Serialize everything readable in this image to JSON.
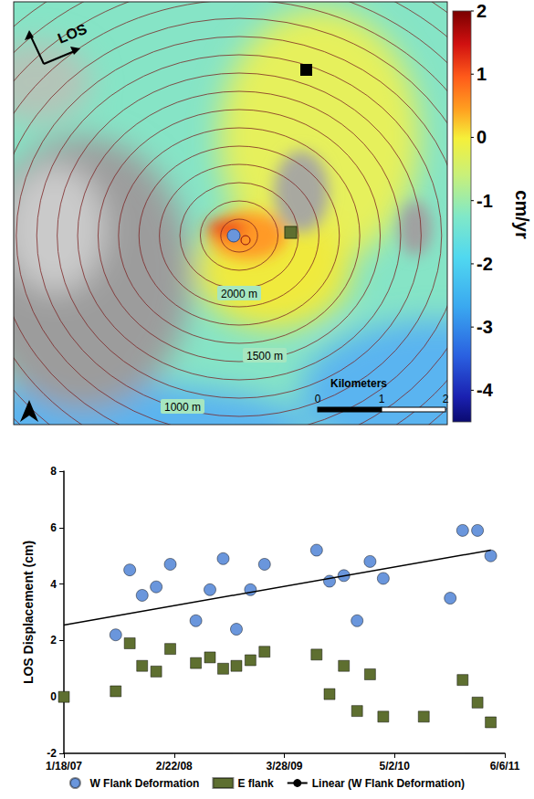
{
  "map": {
    "direction_label": "LOS",
    "colorbar": {
      "label": "cm/yr",
      "range": [
        -4.5,
        2
      ],
      "ticks": [
        2,
        1,
        0,
        -1,
        -2,
        -3,
        -4
      ]
    },
    "contour_labels": [
      "2000 m",
      "1500 m",
      "1000 m"
    ],
    "scale_bar": {
      "title": "Kilometers",
      "ticks": [
        0,
        1,
        2
      ]
    }
  },
  "chart_data": {
    "type": "scatter",
    "ylabel": "LOS Displacement (cm)",
    "xlim": [
      "2007-01-18",
      "2011-06-06"
    ],
    "xticks": [
      {
        "value": "2007-01-18",
        "label": "1/18/07"
      },
      {
        "value": "2008-02-22",
        "label": "2/22/08"
      },
      {
        "value": "2009-03-28",
        "label": "3/28/09"
      },
      {
        "value": "2010-05-02",
        "label": "5/2/10"
      },
      {
        "value": "2011-06-06",
        "label": "6/6/11"
      }
    ],
    "ylim": [
      -2,
      8
    ],
    "yticks": [
      -2,
      0,
      2,
      4,
      6,
      8
    ],
    "grid": false,
    "legend": "bottom",
    "series": [
      {
        "name": "W Flank Deformation",
        "color": "#6a96dc",
        "marker": "circle",
        "x": [
          "2007-07-25",
          "2007-09-14",
          "2007-10-29",
          "2007-12-19",
          "2008-02-08",
          "2008-05-11",
          "2008-07-01",
          "2008-08-18",
          "2008-10-05",
          "2008-11-25",
          "2009-01-15",
          "2009-07-23",
          "2009-09-08",
          "2009-10-30",
          "2009-12-17",
          "2010-02-02",
          "2010-03-22",
          "2010-11-20",
          "2011-01-04",
          "2011-02-27",
          "2011-04-16"
        ],
        "values": [
          2.2,
          4.5,
          3.6,
          3.9,
          4.7,
          2.7,
          3.8,
          4.9,
          2.4,
          3.8,
          4.7,
          5.2,
          4.1,
          4.3,
          2.7,
          4.8,
          4.2,
          3.5,
          5.9,
          5.9,
          5.0
        ]
      },
      {
        "name": "E flank",
        "color": "#5e6f30",
        "marker": "square",
        "x": [
          "2007-01-18",
          "2007-07-25",
          "2007-09-14",
          "2007-10-29",
          "2007-12-19",
          "2008-02-08",
          "2008-05-11",
          "2008-07-01",
          "2008-08-18",
          "2008-10-05",
          "2008-11-25",
          "2009-01-15",
          "2009-07-23",
          "2009-09-08",
          "2009-10-30",
          "2009-12-17",
          "2010-02-02",
          "2010-03-22",
          "2010-08-16",
          "2011-01-04",
          "2011-02-27",
          "2011-04-16"
        ],
        "values": [
          0.0,
          0.2,
          1.9,
          1.1,
          0.9,
          1.7,
          1.2,
          1.4,
          1.0,
          1.1,
          1.3,
          1.6,
          1.5,
          0.1,
          1.1,
          -0.5,
          0.8,
          -0.7,
          -0.7,
          0.6,
          -0.2,
          -0.9
        ]
      },
      {
        "name": "Linear (W Flank Deformation)",
        "color": "#000000",
        "type": "line",
        "line_style": "solid",
        "x": [
          "2007-01-18",
          "2011-04-16"
        ],
        "values": [
          2.55,
          5.2
        ]
      }
    ]
  }
}
